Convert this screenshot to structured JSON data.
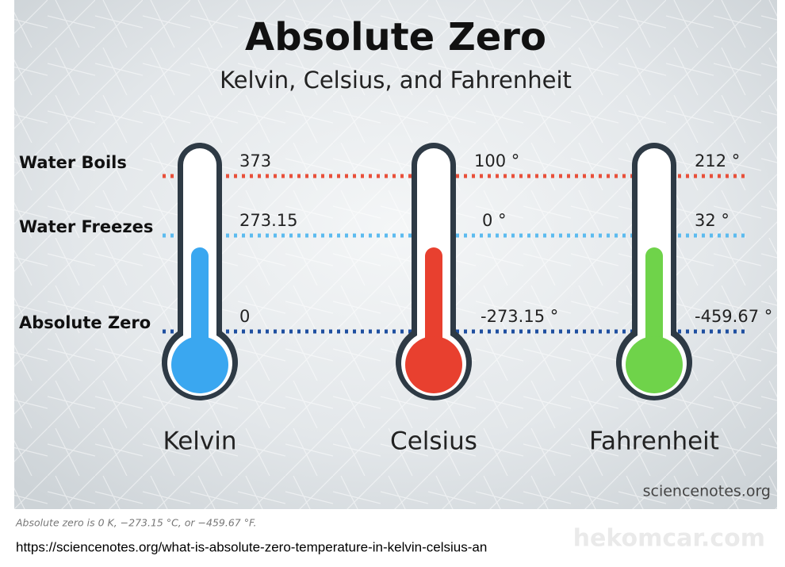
{
  "title": "Absolute Zero",
  "subtitle": "Kelvin, Celsius, and Fahrenheit",
  "levels": [
    "Water Boils",
    "Water Freezes",
    "Absolute Zero"
  ],
  "scales": [
    {
      "name": "Kelvin",
      "values": [
        "373",
        "273.15",
        "0"
      ]
    },
    {
      "name": "Celsius",
      "values": [
        "100 °",
        "0 °",
        "-273.15 °"
      ]
    },
    {
      "name": "Fahrenheit",
      "values": [
        "212 °",
        "32 °",
        "-459.67 °"
      ]
    }
  ],
  "credit": "sciencenotes.org",
  "caption": "Absolute zero is 0 K, −273.15 °C, or −459.67 °F.",
  "url": "https://sciencenotes.org/what-is-absolute-zero-temperature-in-kelvin-celsius-an",
  "watermark": "hekomcar.com"
}
